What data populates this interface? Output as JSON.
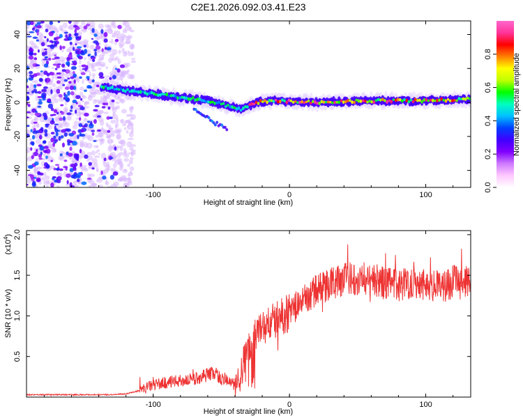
{
  "title": "C2E1.2026.092.03.41.E23",
  "chart_data": [
    {
      "type": "heatmap",
      "name": "spectrogram",
      "xlabel": "Height of straight line (km)",
      "ylabel": "Frequency (Hz)",
      "xlim": [
        -193,
        133
      ],
      "ylim": [
        -50,
        48
      ],
      "x_ticks": [
        -100,
        0,
        100
      ],
      "y_ticks": [
        -40,
        -20,
        0,
        20,
        40
      ],
      "colorbar": {
        "label": "Normalized spectral amplitude",
        "range": [
          0,
          1
        ],
        "ticks": [
          "0.0",
          "0.2",
          "0.4",
          "0.6",
          "0.8"
        ],
        "tick_values": [
          0.0,
          0.2,
          0.4,
          0.6,
          0.8
        ],
        "colors": [
          "#ffffff",
          "#ffc8ff",
          "#cf7bff",
          "#8000ff",
          "#4000ff",
          "#0040ff",
          "#00c0ff",
          "#00ffc0",
          "#00ff00",
          "#c0ff00",
          "#ffff00",
          "#ff8000",
          "#ff0000",
          "#ff3399",
          "#ff66cc"
        ]
      },
      "features": {
        "noise_region_x": [
          -193,
          -120
        ],
        "noise_color": "#8a2be2",
        "ridge": [
          {
            "x": -135,
            "y": 9
          },
          {
            "x": -120,
            "y": 7
          },
          {
            "x": -100,
            "y": 5
          },
          {
            "x": -80,
            "y": 3
          },
          {
            "x": -60,
            "y": 1
          },
          {
            "x": -45,
            "y": -2
          },
          {
            "x": -35,
            "y": -4
          },
          {
            "x": -25,
            "y": 0
          },
          {
            "x": -10,
            "y": 1
          },
          {
            "x": 20,
            "y": 0
          },
          {
            "x": 60,
            "y": 1
          },
          {
            "x": 100,
            "y": 1
          },
          {
            "x": 133,
            "y": 2
          }
        ],
        "branch": [
          {
            "x": -70,
            "y": -4
          },
          {
            "x": -55,
            "y": -12
          },
          {
            "x": -45,
            "y": -16
          }
        ]
      }
    },
    {
      "type": "line",
      "name": "snr",
      "xlabel": "Height of straight line (km)",
      "ylabel": "SNR (10 * v/v)",
      "multiplier_label": "(x10",
      "multiplier_exp": "4",
      "multiplier_close": ")",
      "xlim": [
        -193,
        133
      ],
      "ylim": [
        0,
        2.05
      ],
      "x_ticks": [
        -100,
        0,
        100
      ],
      "y_ticks": [
        "0.5",
        "1.0",
        "1.5",
        "2.0"
      ],
      "y_tick_values": [
        0.5,
        1.0,
        1.5,
        2.0
      ],
      "color": "#ee3333",
      "x": [
        -193,
        -170,
        -150,
        -130,
        -120,
        -110,
        -100,
        -90,
        -80,
        -70,
        -60,
        -55,
        -50,
        -45,
        -40,
        -35,
        -30,
        -25,
        -20,
        -15,
        -10,
        -5,
        0,
        5,
        10,
        15,
        20,
        30,
        40,
        50,
        60,
        70,
        80,
        90,
        100,
        110,
        120,
        133
      ],
      "values": [
        0.03,
        0.03,
        0.03,
        0.03,
        0.04,
        0.08,
        0.15,
        0.18,
        0.2,
        0.22,
        0.28,
        0.3,
        0.22,
        0.2,
        0.15,
        0.38,
        0.6,
        0.78,
        0.85,
        0.9,
        0.95,
        1.0,
        1.05,
        1.12,
        1.18,
        1.25,
        1.32,
        1.4,
        1.45,
        1.47,
        1.45,
        1.4,
        1.38,
        1.42,
        1.4,
        1.35,
        1.42,
        1.4
      ]
    }
  ]
}
